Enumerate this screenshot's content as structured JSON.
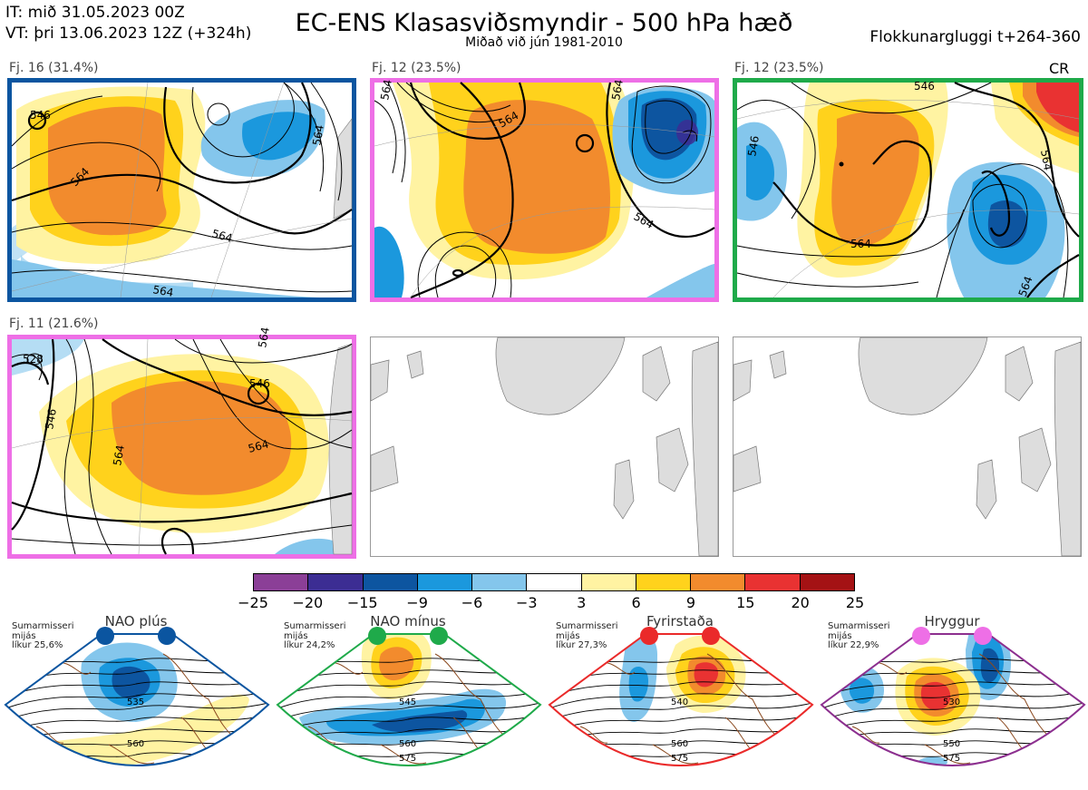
{
  "header": {
    "it_line": "IT: mið 31.05.2023 00Z",
    "vt_line": "VT: þri 13.06.2023 12Z  (+324h)",
    "title": "EC-ENS Klasasviðsmyndir - 500 hPa hæð",
    "subtitle": "Miðað við jún 1981-2010",
    "window": "Flokkunargluggi t+264-360"
  },
  "panels": [
    {
      "label": "Fj. 16 (31.4%)",
      "border": "#0b55a0",
      "tag": ""
    },
    {
      "label": "Fj. 12 (23.5%)",
      "border": "#ee6fe6",
      "tag": ""
    },
    {
      "label": "Fj. 12 (23.5%)",
      "border": "#1faa4a",
      "tag": "CR"
    },
    {
      "label": "Fj. 11 (21.6%)",
      "border": "#ee6fe6",
      "tag": ""
    }
  ],
  "contour_labels": {
    "p1": [
      "546",
      "564",
      "564",
      "564",
      "564"
    ],
    "p2": [
      "564",
      "564",
      "564",
      "564"
    ],
    "p3": [
      "546",
      "546",
      "564",
      "564",
      "564"
    ],
    "p4": [
      "528",
      "546",
      "546",
      "564",
      "564",
      "564"
    ]
  },
  "chart_data": {
    "type": "heatmap",
    "title": "EC-ENS Klasasviðsmyndir - 500 hPa hæð",
    "colorbar": {
      "ticks": [
        "−25",
        "−20",
        "−15",
        "−9",
        "−6",
        "−3",
        "3",
        "6",
        "9",
        "15",
        "20",
        "25"
      ],
      "colors": [
        "#8b3f97",
        "#3c2d93",
        "#0d55a0",
        "#1b98dd",
        "#84c6ec",
        "#ffffff",
        "#fff3a2",
        "#ffd21c",
        "#f28b2d",
        "#e93232",
        "#a41214"
      ]
    },
    "clusters": [
      {
        "name": "Fj. 16",
        "percent": 31.4
      },
      {
        "name": "Fj. 12",
        "percent": 23.5
      },
      {
        "name": "Fj. 12",
        "percent": 23.5
      },
      {
        "name": "Fj. 11",
        "percent": 21.6
      }
    ]
  },
  "regimes": [
    {
      "name": "NAO plús",
      "dot_color": "#0b55a0",
      "border": "#0b55a0",
      "meta": [
        "Sumarmisseri",
        "mijás",
        "líkur 25,6%"
      ],
      "labels": [
        "535",
        "560"
      ]
    },
    {
      "name": "NAO mínus",
      "dot_color": "#1faa4a",
      "border": "#1faa4a",
      "meta": [
        "Sumarmisseri",
        "mijás",
        "líkur 24,2%"
      ],
      "labels": [
        "545",
        "560",
        "575"
      ]
    },
    {
      "name": "Fyrirstaða",
      "dot_color": "#ea2a2a",
      "border": "#ea2a2a",
      "meta": [
        "Sumarmisseri",
        "mijás",
        "líkur 27,3%"
      ],
      "labels": [
        "540",
        "560",
        "575"
      ]
    },
    {
      "name": "Hryggur",
      "dot_color": "#ee6fe6",
      "border": "#8c2f8f",
      "meta": [
        "Sumarmisseri",
        "mijás",
        "líkur 22,9%"
      ],
      "labels": [
        "530",
        "550",
        "575"
      ]
    }
  ]
}
